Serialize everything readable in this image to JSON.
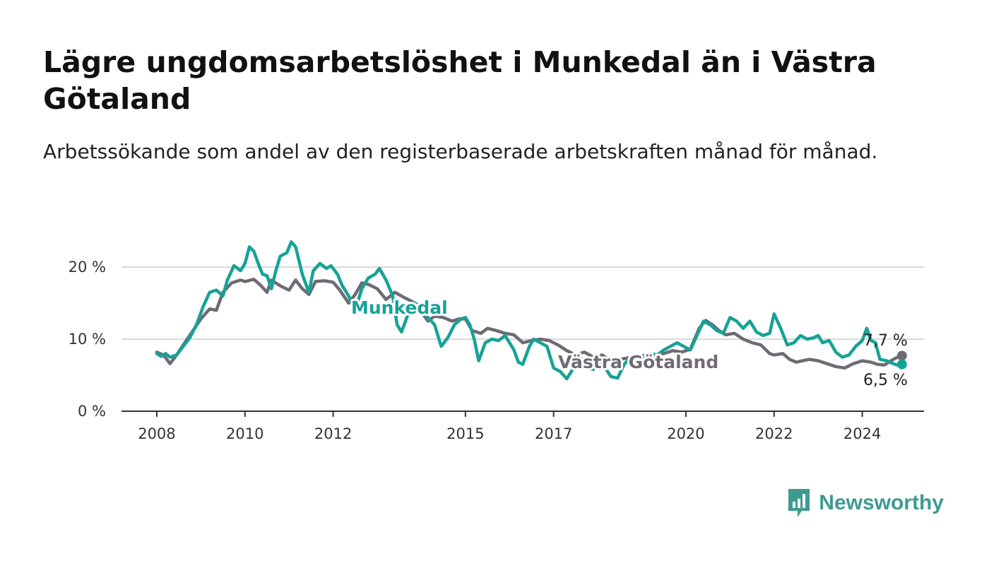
{
  "header": {
    "title": "Lägre ungdomsarbetslöshet i Munkedal än i Västra Götaland",
    "subtitle": "Arbetssökande som andel av den registerbaserade arbetskraften månad för månad."
  },
  "brand": {
    "name": "Newsworthy",
    "icon": "newsworthy-logo-icon",
    "color": "#3f9a92"
  },
  "chart_data": {
    "type": "line",
    "x_unit": "year",
    "xlim": [
      2007.2,
      2025.4
    ],
    "ylim": [
      0,
      20
    ],
    "yticks": [
      0,
      10,
      20
    ],
    "ytick_labels": [
      "0 %",
      "10 %",
      "20 %"
    ],
    "xticks": [
      2008,
      2010,
      2012,
      2015,
      2017,
      2020,
      2022,
      2024
    ],
    "xtick_labels": [
      "2008",
      "2010",
      "2012",
      "2015",
      "2017",
      "2020",
      "2022",
      "2024"
    ],
    "grid": true,
    "series": [
      {
        "name": "Västra Götaland",
        "color": "#6f6a73",
        "end_label": "7,7 %",
        "points": [
          [
            2008.0,
            8.2
          ],
          [
            2008.15,
            7.8
          ],
          [
            2008.3,
            6.6
          ],
          [
            2008.45,
            7.8
          ],
          [
            2008.6,
            9.2
          ],
          [
            2008.8,
            11.0
          ],
          [
            2009.0,
            12.8
          ],
          [
            2009.2,
            14.2
          ],
          [
            2009.35,
            14.0
          ],
          [
            2009.5,
            16.5
          ],
          [
            2009.7,
            17.8
          ],
          [
            2009.9,
            18.2
          ],
          [
            2010.0,
            18.0
          ],
          [
            2010.2,
            18.3
          ],
          [
            2010.35,
            17.5
          ],
          [
            2010.5,
            16.5
          ],
          [
            2010.6,
            18.2
          ],
          [
            2010.8,
            17.4
          ],
          [
            2011.0,
            16.8
          ],
          [
            2011.15,
            18.2
          ],
          [
            2011.3,
            17.0
          ],
          [
            2011.45,
            16.2
          ],
          [
            2011.6,
            18.0
          ],
          [
            2011.8,
            18.1
          ],
          [
            2012.0,
            17.9
          ],
          [
            2012.15,
            16.8
          ],
          [
            2012.35,
            15.0
          ],
          [
            2012.5,
            16.2
          ],
          [
            2012.65,
            17.8
          ],
          [
            2012.8,
            17.6
          ],
          [
            2013.0,
            17.0
          ],
          [
            2013.2,
            15.5
          ],
          [
            2013.4,
            16.5
          ],
          [
            2013.6,
            15.8
          ],
          [
            2013.8,
            15.2
          ],
          [
            2014.0,
            13.8
          ],
          [
            2014.15,
            12.5
          ],
          [
            2014.3,
            13.2
          ],
          [
            2014.5,
            13.0
          ],
          [
            2014.7,
            12.5
          ],
          [
            2014.85,
            12.8
          ],
          [
            2015.0,
            12.8
          ],
          [
            2015.15,
            11.2
          ],
          [
            2015.35,
            10.8
          ],
          [
            2015.5,
            11.5
          ],
          [
            2015.7,
            11.2
          ],
          [
            2015.9,
            10.8
          ],
          [
            2016.1,
            10.6
          ],
          [
            2016.3,
            9.5
          ],
          [
            2016.5,
            9.8
          ],
          [
            2016.7,
            10.0
          ],
          [
            2016.9,
            9.8
          ],
          [
            2017.1,
            9.2
          ],
          [
            2017.3,
            8.4
          ],
          [
            2017.5,
            7.8
          ],
          [
            2017.7,
            8.2
          ],
          [
            2017.9,
            7.5
          ],
          [
            2018.1,
            7.8
          ],
          [
            2018.3,
            7.0
          ],
          [
            2018.5,
            7.2
          ],
          [
            2018.7,
            7.4
          ],
          [
            2018.9,
            7.6
          ],
          [
            2019.1,
            7.8
          ],
          [
            2019.3,
            7.8
          ],
          [
            2019.5,
            8.0
          ],
          [
            2019.7,
            8.4
          ],
          [
            2019.9,
            8.2
          ],
          [
            2020.1,
            8.6
          ],
          [
            2020.3,
            11.5
          ],
          [
            2020.45,
            12.6
          ],
          [
            2020.6,
            12.0
          ],
          [
            2020.75,
            11.2
          ],
          [
            2020.9,
            10.6
          ],
          [
            2021.1,
            10.8
          ],
          [
            2021.3,
            10.0
          ],
          [
            2021.5,
            9.5
          ],
          [
            2021.7,
            9.2
          ],
          [
            2021.9,
            8.0
          ],
          [
            2022.0,
            7.8
          ],
          [
            2022.2,
            8.0
          ],
          [
            2022.35,
            7.2
          ],
          [
            2022.5,
            6.8
          ],
          [
            2022.65,
            7.0
          ],
          [
            2022.8,
            7.2
          ],
          [
            2023.0,
            7.0
          ],
          [
            2023.2,
            6.6
          ],
          [
            2023.4,
            6.2
          ],
          [
            2023.6,
            6.0
          ],
          [
            2023.8,
            6.6
          ],
          [
            2024.0,
            7.0
          ],
          [
            2024.2,
            6.8
          ],
          [
            2024.35,
            6.5
          ],
          [
            2024.5,
            6.4
          ],
          [
            2024.65,
            7.0
          ],
          [
            2024.8,
            7.5
          ],
          [
            2024.9,
            7.7
          ]
        ]
      },
      {
        "name": "Munkedal",
        "color": "#16a297",
        "end_label": "6,5 %",
        "points": [
          [
            2008.0,
            8.0
          ],
          [
            2008.1,
            7.6
          ],
          [
            2008.2,
            8.0
          ],
          [
            2008.3,
            7.5
          ],
          [
            2008.45,
            7.8
          ],
          [
            2008.6,
            9.0
          ],
          [
            2008.75,
            10.2
          ],
          [
            2008.9,
            12.0
          ],
          [
            2009.05,
            14.5
          ],
          [
            2009.2,
            16.5
          ],
          [
            2009.35,
            16.8
          ],
          [
            2009.5,
            16.0
          ],
          [
            2009.6,
            18.2
          ],
          [
            2009.75,
            20.2
          ],
          [
            2009.9,
            19.5
          ],
          [
            2010.0,
            20.5
          ],
          [
            2010.1,
            22.8
          ],
          [
            2010.2,
            22.2
          ],
          [
            2010.3,
            20.5
          ],
          [
            2010.4,
            19.0
          ],
          [
            2010.5,
            18.8
          ],
          [
            2010.6,
            17.0
          ],
          [
            2010.7,
            19.5
          ],
          [
            2010.8,
            21.5
          ],
          [
            2010.95,
            22.0
          ],
          [
            2011.05,
            23.5
          ],
          [
            2011.15,
            22.8
          ],
          [
            2011.3,
            19.0
          ],
          [
            2011.45,
            16.5
          ],
          [
            2011.55,
            19.5
          ],
          [
            2011.7,
            20.5
          ],
          [
            2011.85,
            19.8
          ],
          [
            2011.95,
            20.2
          ],
          [
            2012.1,
            19.0
          ],
          [
            2012.2,
            17.5
          ],
          [
            2012.35,
            16.0
          ],
          [
            2012.5,
            14.0
          ],
          [
            2012.65,
            17.0
          ],
          [
            2012.8,
            18.5
          ],
          [
            2012.95,
            19.0
          ],
          [
            2013.05,
            19.8
          ],
          [
            2013.2,
            18.2
          ],
          [
            2013.35,
            16.0
          ],
          [
            2013.45,
            12.0
          ],
          [
            2013.55,
            11.0
          ],
          [
            2013.7,
            13.5
          ],
          [
            2013.85,
            15.0
          ],
          [
            2014.0,
            14.5
          ],
          [
            2014.15,
            13.0
          ],
          [
            2014.3,
            12.0
          ],
          [
            2014.45,
            9.0
          ],
          [
            2014.6,
            10.2
          ],
          [
            2014.75,
            12.0
          ],
          [
            2014.9,
            12.8
          ],
          [
            2015.0,
            13.0
          ],
          [
            2015.1,
            12.0
          ],
          [
            2015.2,
            10.0
          ],
          [
            2015.3,
            7.0
          ],
          [
            2015.45,
            9.5
          ],
          [
            2015.6,
            10.0
          ],
          [
            2015.75,
            9.8
          ],
          [
            2015.9,
            10.5
          ],
          [
            2016.0,
            9.5
          ],
          [
            2016.1,
            8.5
          ],
          [
            2016.2,
            6.8
          ],
          [
            2016.3,
            6.5
          ],
          [
            2016.45,
            9.0
          ],
          [
            2016.55,
            10.0
          ],
          [
            2016.7,
            9.5
          ],
          [
            2016.85,
            9.0
          ],
          [
            2017.0,
            6.0
          ],
          [
            2017.15,
            5.5
          ],
          [
            2017.3,
            4.5
          ],
          [
            2017.45,
            6.0
          ],
          [
            2017.6,
            7.5
          ],
          [
            2017.75,
            6.0
          ],
          [
            2017.9,
            5.8
          ],
          [
            2018.05,
            7.0
          ],
          [
            2018.15,
            6.2
          ],
          [
            2018.3,
            4.8
          ],
          [
            2018.45,
            4.6
          ],
          [
            2018.6,
            6.5
          ],
          [
            2018.75,
            7.5
          ],
          [
            2018.9,
            7.0
          ],
          [
            2019.05,
            7.5
          ],
          [
            2019.2,
            8.0
          ],
          [
            2019.35,
            7.8
          ],
          [
            2019.5,
            8.5
          ],
          [
            2019.65,
            9.0
          ],
          [
            2019.8,
            9.5
          ],
          [
            2019.95,
            9.0
          ],
          [
            2020.1,
            8.5
          ],
          [
            2020.25,
            10.5
          ],
          [
            2020.4,
            12.5
          ],
          [
            2020.55,
            12.0
          ],
          [
            2020.7,
            11.2
          ],
          [
            2020.85,
            10.8
          ],
          [
            2021.0,
            13.0
          ],
          [
            2021.15,
            12.5
          ],
          [
            2021.3,
            11.5
          ],
          [
            2021.45,
            12.5
          ],
          [
            2021.6,
            11.0
          ],
          [
            2021.75,
            10.5
          ],
          [
            2021.9,
            10.8
          ],
          [
            2022.0,
            13.5
          ],
          [
            2022.15,
            11.5
          ],
          [
            2022.3,
            9.2
          ],
          [
            2022.45,
            9.5
          ],
          [
            2022.6,
            10.5
          ],
          [
            2022.75,
            10.0
          ],
          [
            2022.9,
            10.2
          ],
          [
            2023.0,
            10.5
          ],
          [
            2023.1,
            9.5
          ],
          [
            2023.25,
            9.8
          ],
          [
            2023.4,
            8.2
          ],
          [
            2023.55,
            7.5
          ],
          [
            2023.7,
            7.8
          ],
          [
            2023.85,
            9.0
          ],
          [
            2024.0,
            9.8
          ],
          [
            2024.1,
            11.5
          ],
          [
            2024.2,
            9.8
          ],
          [
            2024.3,
            9.5
          ],
          [
            2024.4,
            7.2
          ],
          [
            2024.55,
            7.0
          ],
          [
            2024.7,
            6.6
          ],
          [
            2024.8,
            6.4
          ],
          [
            2024.9,
            6.5
          ]
        ]
      }
    ],
    "annotations": [
      {
        "text": "Munkedal",
        "series": "Munkedal"
      },
      {
        "text": "Västra Götaland",
        "series": "Västra Götaland"
      }
    ]
  }
}
